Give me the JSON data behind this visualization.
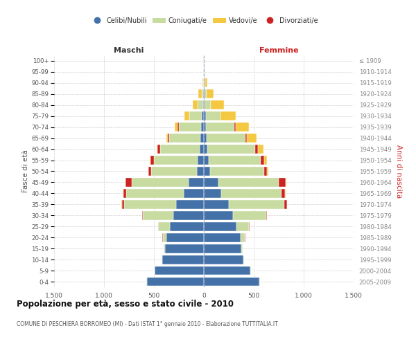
{
  "age_groups": [
    "0-4",
    "5-9",
    "10-14",
    "15-19",
    "20-24",
    "25-29",
    "30-34",
    "35-39",
    "40-44",
    "45-49",
    "50-54",
    "55-59",
    "60-64",
    "65-69",
    "70-74",
    "75-79",
    "80-84",
    "85-89",
    "90-94",
    "95-99",
    "100+"
  ],
  "birth_years": [
    "2005-2009",
    "2000-2004",
    "1995-1999",
    "1990-1994",
    "1985-1989",
    "1980-1984",
    "1975-1979",
    "1970-1974",
    "1965-1969",
    "1960-1964",
    "1955-1959",
    "1950-1954",
    "1945-1949",
    "1940-1944",
    "1935-1939",
    "1930-1934",
    "1925-1929",
    "1920-1924",
    "1915-1919",
    "1910-1914",
    "≤ 1909"
  ],
  "males_celibi": [
    570,
    490,
    420,
    390,
    375,
    340,
    305,
    275,
    200,
    155,
    72,
    62,
    45,
    32,
    28,
    18,
    10,
    5,
    3,
    2,
    2
  ],
  "males_coniugati": [
    4,
    5,
    5,
    10,
    38,
    115,
    305,
    525,
    575,
    570,
    455,
    435,
    390,
    315,
    225,
    125,
    50,
    18,
    5,
    3,
    2
  ],
  "males_vedovi": [
    0,
    0,
    0,
    0,
    2,
    2,
    2,
    3,
    4,
    4,
    4,
    4,
    4,
    13,
    28,
    50,
    48,
    30,
    5,
    2,
    0
  ],
  "males_divorziati": [
    0,
    0,
    0,
    0,
    4,
    4,
    8,
    22,
    32,
    58,
    28,
    38,
    30,
    14,
    14,
    4,
    0,
    0,
    0,
    0,
    0
  ],
  "females_nubili": [
    558,
    468,
    398,
    375,
    368,
    325,
    295,
    248,
    175,
    148,
    60,
    50,
    35,
    28,
    24,
    18,
    10,
    6,
    4,
    2,
    2
  ],
  "females_coniugate": [
    4,
    5,
    6,
    12,
    44,
    128,
    328,
    558,
    602,
    602,
    542,
    522,
    482,
    392,
    282,
    148,
    58,
    24,
    8,
    3,
    2
  ],
  "females_vedove": [
    0,
    0,
    0,
    0,
    2,
    2,
    3,
    4,
    7,
    9,
    14,
    28,
    52,
    92,
    132,
    148,
    130,
    70,
    20,
    5,
    2
  ],
  "females_divorziate": [
    0,
    0,
    0,
    0,
    4,
    4,
    8,
    24,
    38,
    68,
    28,
    34,
    28,
    14,
    10,
    4,
    0,
    0,
    0,
    0,
    0
  ],
  "color_celibi": "#4472a8",
  "color_coniugati": "#c8dba0",
  "color_vedovi": "#f5c842",
  "color_divorziati": "#cc2222",
  "legend_labels": [
    "Celibi/Nubili",
    "Coniugati/e",
    "Vedovi/e",
    "Divorziati/e"
  ],
  "title": "Popolazione per età, sesso e stato civile - 2010",
  "subtitle": "COMUNE DI PESCHIERA BORROMEO (MI) - Dati ISTAT 1° gennaio 2010 - Elaborazione TUTTITALIA.IT",
  "label_maschi": "Maschi",
  "label_femmine": "Femmine",
  "label_fascia": "Fasce di età",
  "label_anni": "Anni di nascita",
  "xlim": 1500,
  "bg_color": "#ffffff",
  "grid_color": "#cccccc"
}
